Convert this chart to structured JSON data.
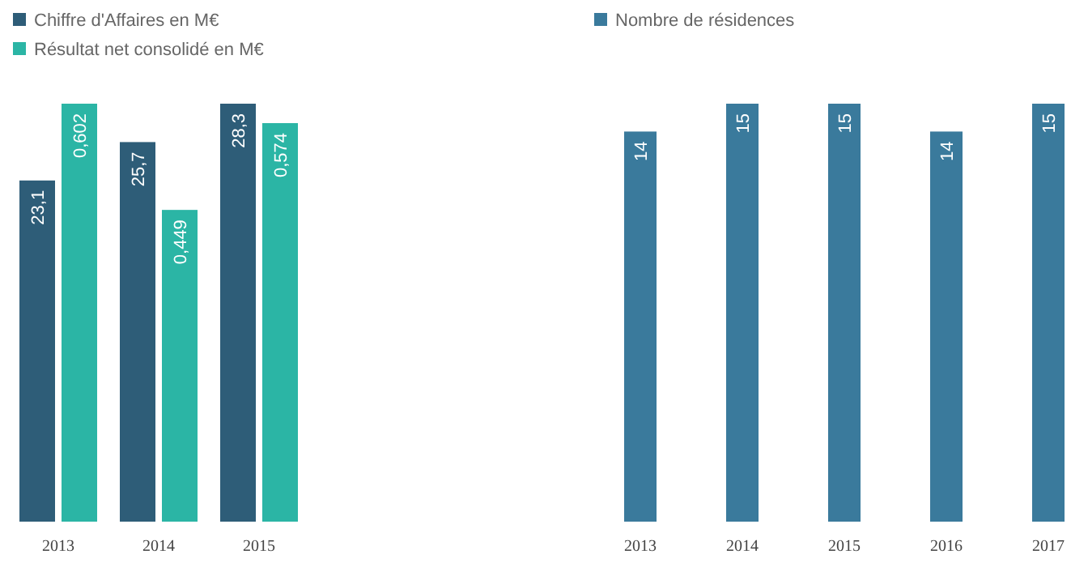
{
  "chart_data": [
    {
      "type": "bar",
      "categories": [
        "2013",
        "2014",
        "2015"
      ],
      "series": [
        {
          "name": "Chiffre d'Affaires en M€",
          "color": "#2e5d78",
          "values": [
            23.1,
            25.7,
            28.3
          ],
          "value_labels": [
            "23,1",
            "25,7",
            "28,3"
          ]
        },
        {
          "name": "Résultat net consolidé en M€",
          "color": "#2bb5a5",
          "axis": "y2",
          "values": [
            0.602,
            0.449,
            0.574
          ],
          "value_labels": [
            "0,602",
            "0,449",
            "0,574"
          ]
        }
      ],
      "tick_labels": "x",
      "legend": "top left"
    },
    {
      "type": "bar",
      "categories": [
        "2013",
        "2014",
        "2015",
        "2016",
        "2017"
      ],
      "series": [
        {
          "name": "Nombre de résidences",
          "color": "#3a7a9c",
          "values": [
            14,
            15,
            15,
            14,
            15
          ]
        }
      ],
      "tick_labels": "x",
      "legend": "top left",
      "data_labels": true
    }
  ]
}
